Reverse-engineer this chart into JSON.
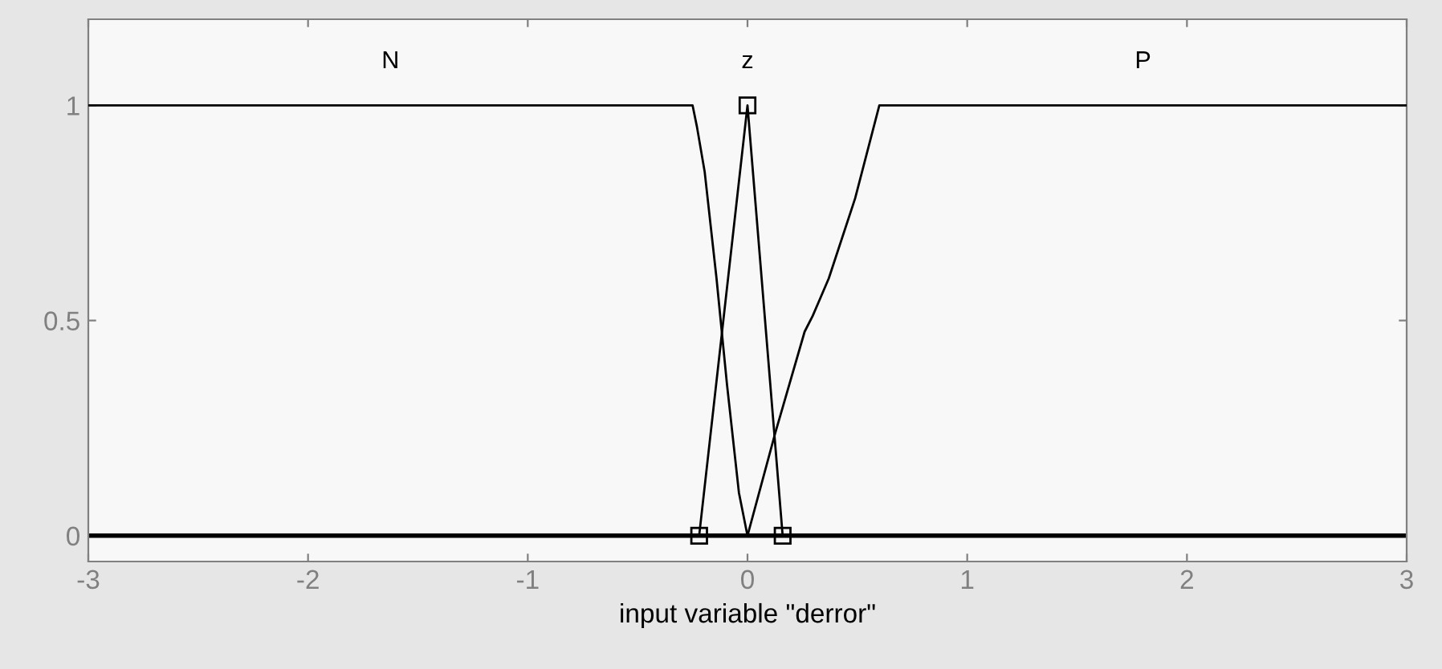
{
  "chart_data": {
    "type": "line",
    "xlabel": "input variable \"derror\"",
    "xlim": [
      -3,
      3
    ],
    "xticks": [
      -3,
      -2,
      -1,
      0,
      1,
      2,
      3
    ],
    "ylim": [
      -0.06,
      1.2
    ],
    "yticks": [
      0,
      0.5,
      1
    ],
    "grid": false,
    "legend": false,
    "line_style": "solid",
    "series": [
      {
        "name": "N",
        "color": "#000000",
        "marker": "none",
        "x": [
          -3,
          -0.25,
          -0.23,
          -0.195,
          -0.141,
          -0.093,
          -0.039,
          0
        ],
        "values": [
          1,
          1,
          0.95,
          0.846,
          0.598,
          0.35,
          0.1,
          0
        ]
      },
      {
        "name": "z",
        "color": "#000000",
        "marker": "square",
        "x": [
          -0.22,
          0,
          0.16
        ],
        "values": [
          0,
          1,
          0
        ]
      },
      {
        "name": "P",
        "color": "#000000",
        "marker": "none",
        "x": [
          0,
          0.126,
          0.26,
          0.297,
          0.37,
          0.49,
          0.6,
          3
        ],
        "values": [
          0,
          0.238,
          0.474,
          0.511,
          0.598,
          0.784,
          1,
          1
        ]
      }
    ],
    "ref_lines": [
      {
        "axis": "y",
        "value": 0,
        "color": "#000000"
      }
    ]
  }
}
